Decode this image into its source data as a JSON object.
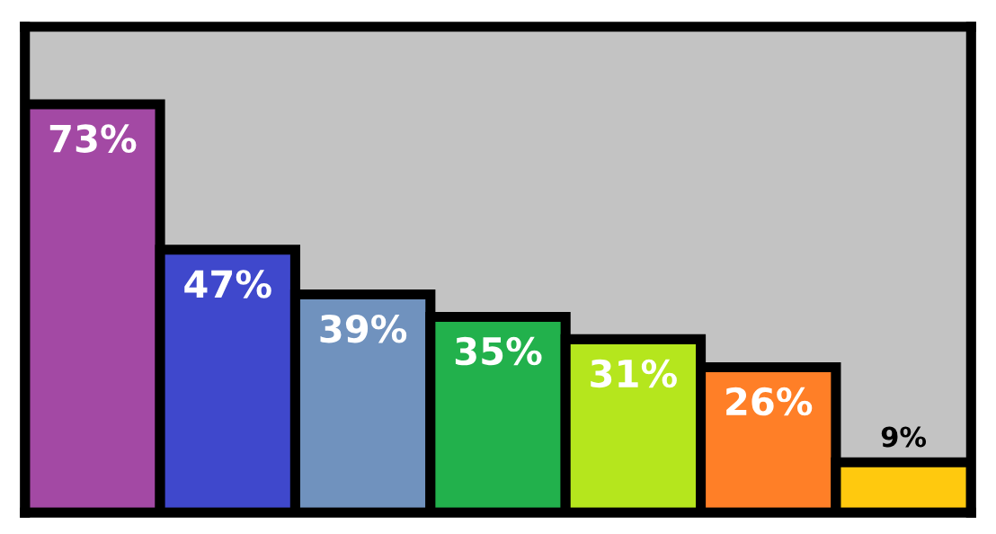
{
  "chart_data": {
    "type": "bar",
    "categories": [
      null,
      null,
      null,
      null,
      null,
      null,
      null
    ],
    "values": [
      73,
      47,
      39,
      35,
      31,
      26,
      9
    ],
    "value_labels": [
      "73%",
      "47%",
      "39%",
      "35%",
      "31%",
      "26%",
      "9%"
    ],
    "colors": [
      "#a349a4",
      "#3f48cc",
      "#7092be",
      "#22b14c",
      "#b5e61d",
      "#ff7f27",
      "#ffc90e"
    ],
    "grid": false
  }
}
